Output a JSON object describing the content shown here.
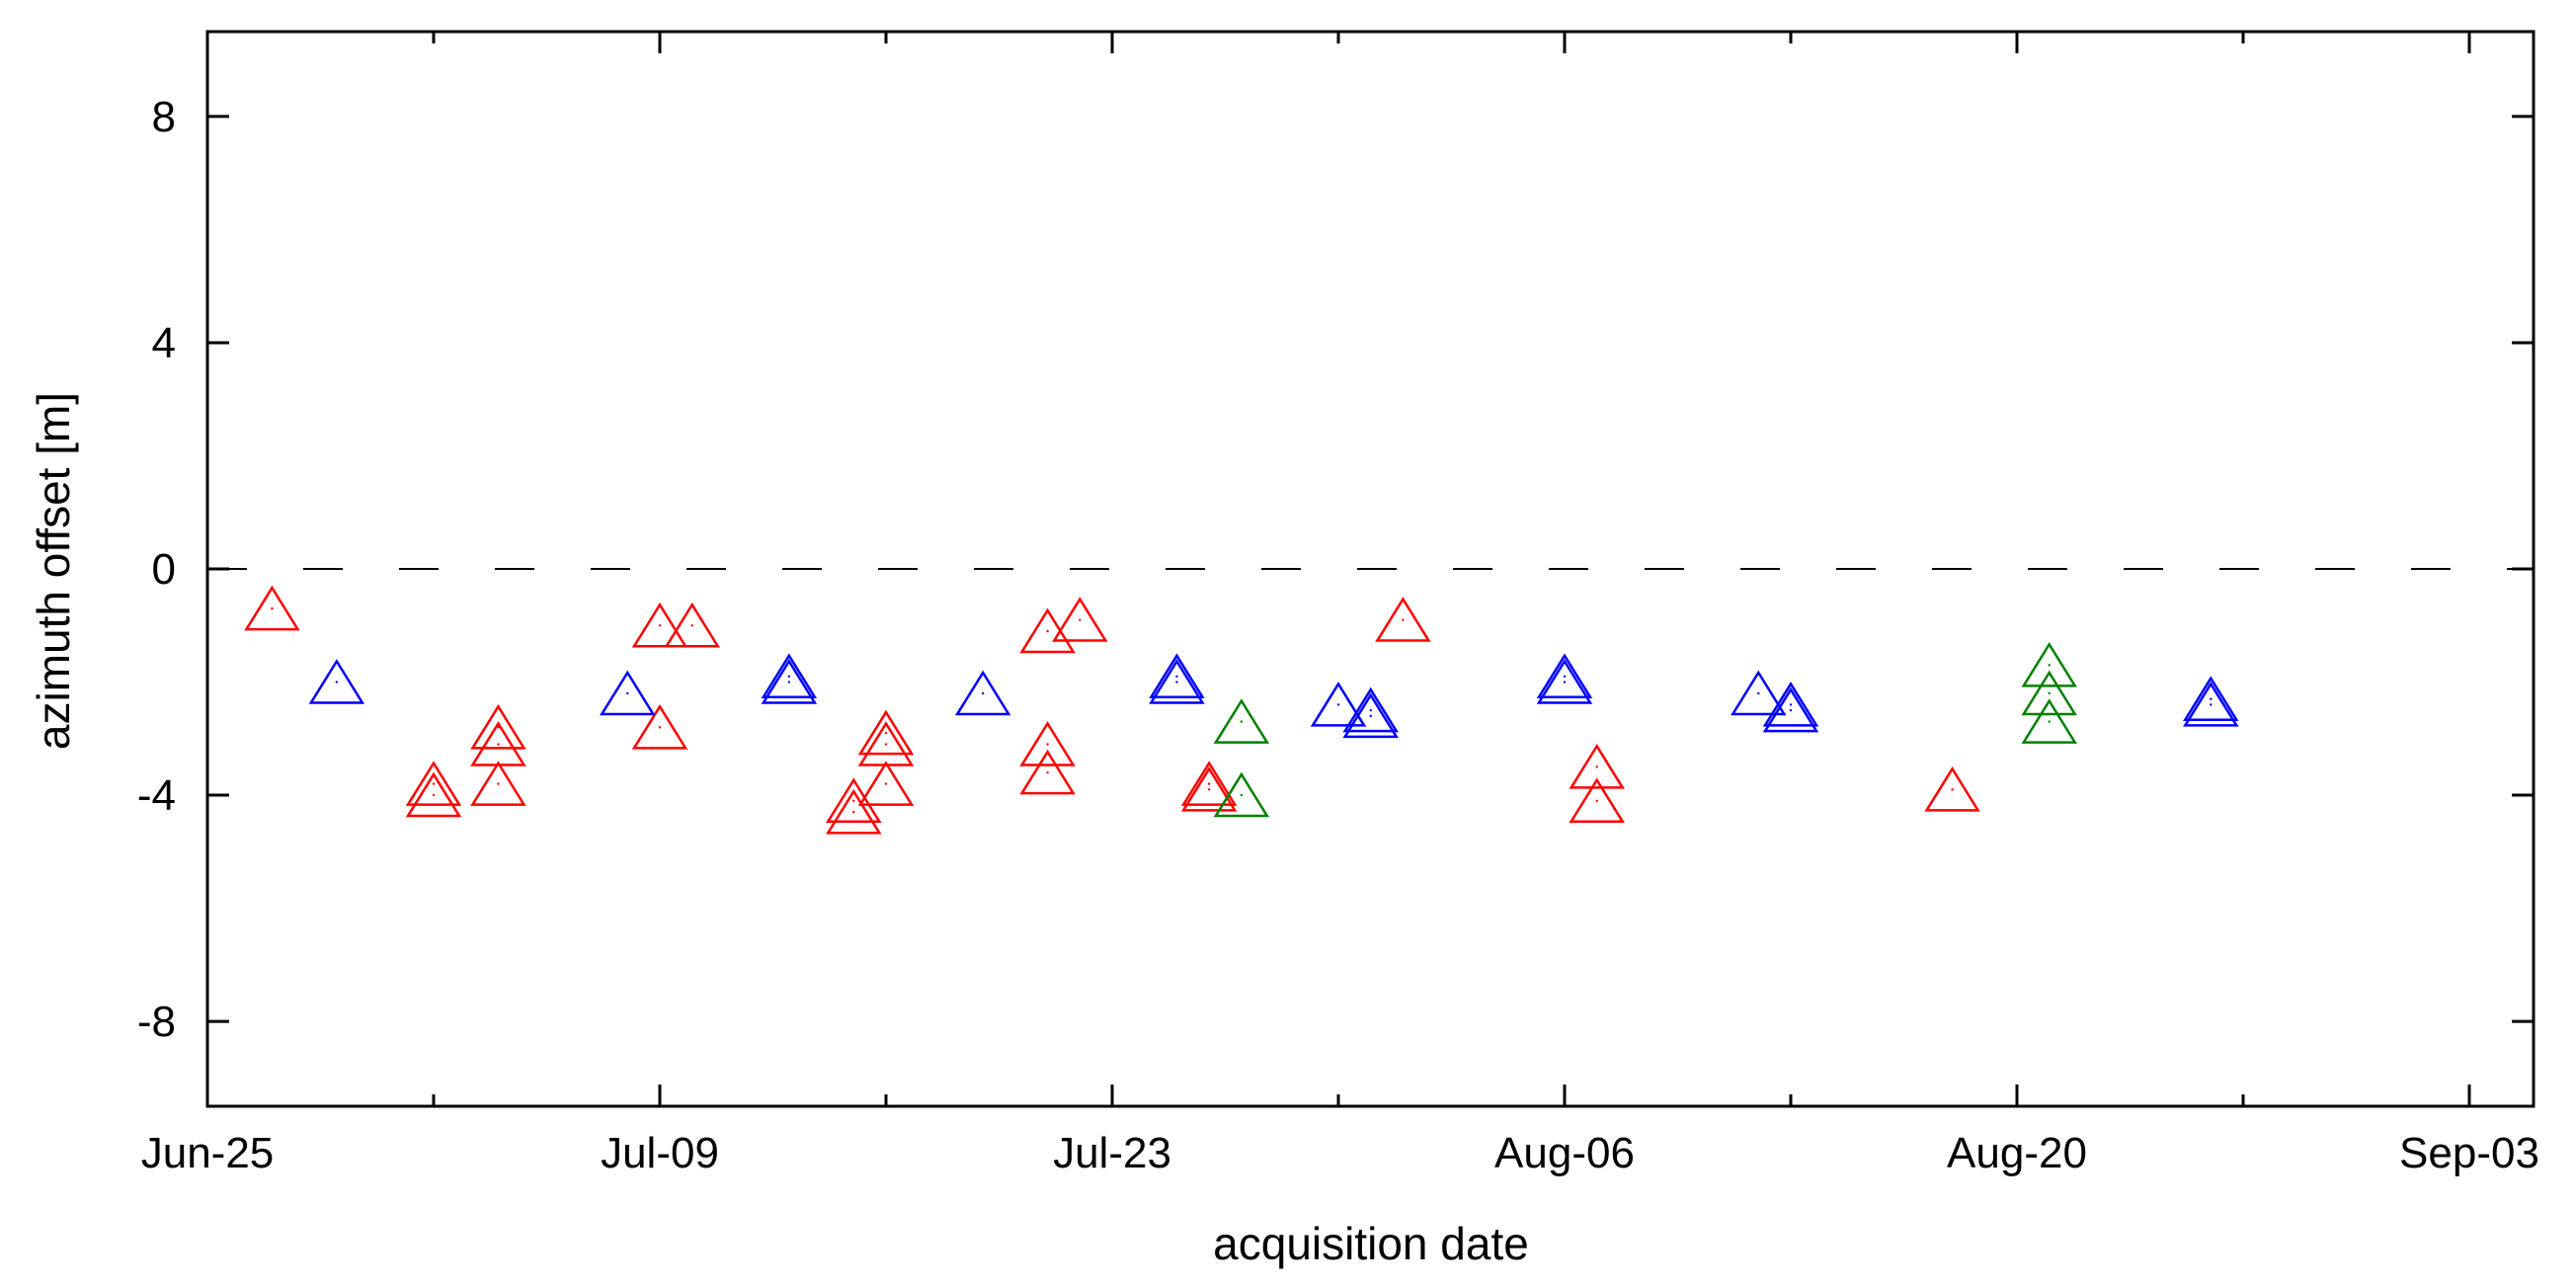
{
  "chart_data": {
    "type": "scatter",
    "xlabel": "acquisition date",
    "ylabel": "azimuth offset [m]",
    "x_ticks": [
      "Jun-25",
      "Jul-09",
      "Jul-23",
      "Aug-06",
      "Aug-20",
      "Sep-03"
    ],
    "x_range": [
      "Jun-25",
      "Sep-03"
    ],
    "y_ticks": [
      8,
      4,
      0,
      -4,
      -8
    ],
    "ylim": [
      -9.5,
      9.5
    ],
    "reference_line": {
      "y": 0,
      "style": "dashed"
    },
    "marker": "open-triangle",
    "grid": false,
    "series": [
      {
        "color": "#ff0000",
        "points": [
          {
            "x": "Jun-27",
            "y": -0.7
          },
          {
            "x": "Jul-02",
            "y": -3.8
          },
          {
            "x": "Jul-02",
            "y": -4.0
          },
          {
            "x": "Jul-04",
            "y": -2.8
          },
          {
            "x": "Jul-04",
            "y": -3.1
          },
          {
            "x": "Jul-04",
            "y": -3.8
          },
          {
            "x": "Jul-09",
            "y": -1.0
          },
          {
            "x": "Jul-09",
            "y": -2.8
          },
          {
            "x": "Jul-10",
            "y": -1.0
          },
          {
            "x": "Jul-15",
            "y": -4.1
          },
          {
            "x": "Jul-15",
            "y": -4.3
          },
          {
            "x": "Jul-16",
            "y": -2.9
          },
          {
            "x": "Jul-16",
            "y": -3.1
          },
          {
            "x": "Jul-16",
            "y": -3.8
          },
          {
            "x": "Jul-21",
            "y": -1.1
          },
          {
            "x": "Jul-21",
            "y": -3.1
          },
          {
            "x": "Jul-21",
            "y": -3.6
          },
          {
            "x": "Jul-22",
            "y": -0.9
          },
          {
            "x": "Jul-26",
            "y": -3.8
          },
          {
            "x": "Jul-26",
            "y": -3.9
          },
          {
            "x": "Aug-01",
            "y": -0.9
          },
          {
            "x": "Aug-07",
            "y": -3.5
          },
          {
            "x": "Aug-07",
            "y": -4.1
          },
          {
            "x": "Aug-18",
            "y": -3.9
          }
        ]
      },
      {
        "color": "#0000ff",
        "points": [
          {
            "x": "Jun-29",
            "y": -2.0
          },
          {
            "x": "Jul-08",
            "y": -2.2
          },
          {
            "x": "Jul-13",
            "y": -1.9
          },
          {
            "x": "Jul-13",
            "y": -2.0
          },
          {
            "x": "Jul-19",
            "y": -2.2
          },
          {
            "x": "Jul-25",
            "y": -1.9
          },
          {
            "x": "Jul-25",
            "y": -2.0
          },
          {
            "x": "Jul-30",
            "y": -2.4
          },
          {
            "x": "Jul-31",
            "y": -2.5
          },
          {
            "x": "Jul-31",
            "y": -2.6
          },
          {
            "x": "Aug-06",
            "y": -1.9
          },
          {
            "x": "Aug-06",
            "y": -2.0
          },
          {
            "x": "Aug-12",
            "y": -2.2
          },
          {
            "x": "Aug-13",
            "y": -2.4
          },
          {
            "x": "Aug-13",
            "y": -2.5
          },
          {
            "x": "Aug-26",
            "y": -2.3
          },
          {
            "x": "Aug-26",
            "y": -2.4
          }
        ]
      },
      {
        "color": "#008000",
        "points": [
          {
            "x": "Jul-27",
            "y": -2.7
          },
          {
            "x": "Jul-27",
            "y": -4.0
          },
          {
            "x": "Aug-21",
            "y": -1.7
          },
          {
            "x": "Aug-21",
            "y": -2.2
          },
          {
            "x": "Aug-21",
            "y": -2.7
          }
        ]
      }
    ]
  }
}
